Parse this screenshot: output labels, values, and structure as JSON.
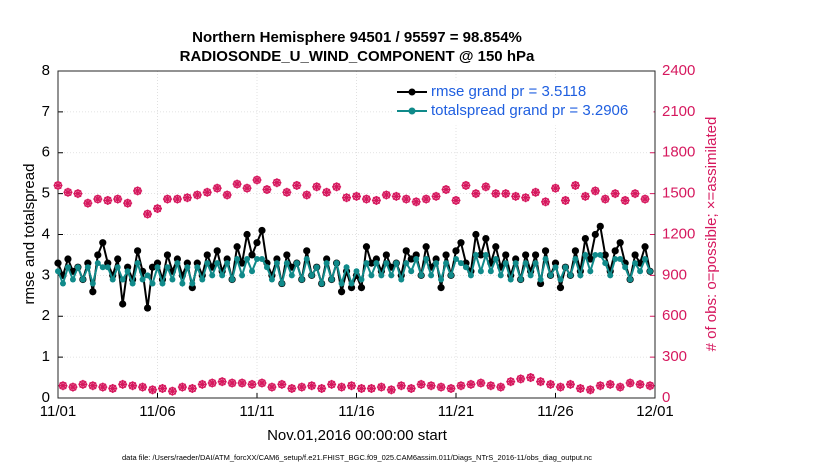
{
  "chart_data": {
    "type": "line",
    "title": "Northern Hemisphere 94501 / 95597 = 98.854%",
    "subtitle": "RADIOSONDE_U_WIND_COMPONENT @ 150 hPa",
    "xlabel": "Nov.01,2016 00:00:00 start",
    "ylabel": "rmse and totalspread",
    "y2label": "# of obs: o=possible; ×=assimilated",
    "footnote": "data file: /Users/raeder/DAI/ATM_forcXX/CAM6_setup/f.e21.FHIST_BGC.f09_025.CAM6assim.011/Diags_NTrS_2016-11/obs_diag_output.nc",
    "xlim": [
      0,
      30
    ],
    "xticks": [
      {
        "value": 0,
        "label": "11/01"
      },
      {
        "value": 5,
        "label": "11/06"
      },
      {
        "value": 10,
        "label": "11/11"
      },
      {
        "value": 15,
        "label": "11/16"
      },
      {
        "value": 20,
        "label": "11/21"
      },
      {
        "value": 25,
        "label": "11/26"
      },
      {
        "value": 30,
        "label": "12/01"
      }
    ],
    "ylim": [
      0,
      8
    ],
    "yticks": [
      0,
      1,
      2,
      3,
      4,
      5,
      6,
      7,
      8
    ],
    "y2lim": [
      0,
      2400
    ],
    "y2ticks": [
      0,
      300,
      600,
      900,
      1200,
      1500,
      1800,
      2100,
      2400
    ],
    "grid": true,
    "legend": "upper right",
    "x": [
      0,
      0.25,
      0.5,
      0.75,
      1,
      1.25,
      1.5,
      1.75,
      2,
      2.25,
      2.5,
      2.75,
      3,
      3.25,
      3.5,
      3.75,
      4,
      4.25,
      4.5,
      4.75,
      5,
      5.25,
      5.5,
      5.75,
      6,
      6.25,
      6.5,
      6.75,
      7,
      7.25,
      7.5,
      7.75,
      8,
      8.25,
      8.5,
      8.75,
      9,
      9.25,
      9.5,
      9.75,
      10,
      10.25,
      10.5,
      10.75,
      11,
      11.25,
      11.5,
      11.75,
      12,
      12.25,
      12.5,
      12.75,
      13,
      13.25,
      13.5,
      13.75,
      14,
      14.25,
      14.5,
      14.75,
      15,
      15.25,
      15.5,
      15.75,
      16,
      16.25,
      16.5,
      16.75,
      17,
      17.25,
      17.5,
      17.75,
      18,
      18.25,
      18.5,
      18.75,
      19,
      19.25,
      19.5,
      19.75,
      20,
      20.25,
      20.5,
      20.75,
      21,
      21.25,
      21.5,
      21.75,
      22,
      22.25,
      22.5,
      22.75,
      23,
      23.25,
      23.5,
      23.75,
      24,
      24.25,
      24.5,
      24.75,
      25,
      25.25,
      25.5,
      25.75,
      26,
      26.25,
      26.5,
      26.75,
      27,
      27.25,
      27.5,
      27.75,
      28,
      28.25,
      28.5,
      28.75,
      29,
      29.25,
      29.5,
      29.75
    ],
    "series": [
      {
        "name": "rmse grand pr = 3.5118",
        "color": "#000000",
        "marker": "filled",
        "values": [
          3.3,
          3.0,
          3.4,
          3.1,
          3.2,
          2.9,
          3.3,
          2.6,
          3.5,
          3.8,
          3.3,
          3.0,
          3.4,
          2.3,
          3.2,
          2.9,
          3.6,
          3.1,
          2.2,
          3.2,
          3.3,
          2.9,
          3.5,
          3.1,
          3.4,
          3.0,
          3.3,
          2.7,
          3.3,
          3.0,
          3.5,
          3.2,
          3.6,
          3.1,
          3.4,
          2.9,
          3.7,
          3.3,
          4.0,
          3.5,
          3.8,
          4.1,
          3.3,
          3.0,
          3.4,
          2.8,
          3.5,
          3.2,
          3.3,
          2.9,
          3.6,
          3.0,
          3.2,
          2.8,
          3.4,
          2.9,
          3.3,
          2.6,
          3.1,
          2.7,
          3.0,
          2.7,
          3.7,
          3.3,
          3.4,
          3.1,
          3.5,
          3.2,
          3.3,
          3.0,
          3.6,
          3.4,
          3.5,
          3.0,
          3.7,
          3.2,
          3.4,
          2.7,
          3.5,
          3.0,
          3.6,
          3.8,
          3.3,
          3.1,
          4.0,
          3.5,
          3.9,
          3.3,
          3.7,
          3.2,
          3.5,
          3.0,
          3.4,
          2.9,
          3.5,
          3.1,
          3.5,
          2.8,
          3.6,
          3.0,
          3.3,
          2.7,
          3.2,
          3.0,
          3.6,
          3.1,
          3.9,
          3.4,
          4.0,
          4.2,
          3.5,
          3.1,
          3.6,
          3.8,
          3.3,
          2.9,
          3.5,
          3.3,
          3.7,
          3.1
        ]
      },
      {
        "name": "totalspread grand pr = 3.2906",
        "color": "#108a8a",
        "marker": "filled",
        "values": [
          3.1,
          2.8,
          3.2,
          2.9,
          3.2,
          2.9,
          3.2,
          2.8,
          3.3,
          3.2,
          3.2,
          2.9,
          3.2,
          2.9,
          3.1,
          2.8,
          3.3,
          2.9,
          3.0,
          2.8,
          3.2,
          2.8,
          3.2,
          2.9,
          3.3,
          2.8,
          3.2,
          2.8,
          3.2,
          2.9,
          3.3,
          3.0,
          3.3,
          3.0,
          3.3,
          2.9,
          3.4,
          3.0,
          3.4,
          3.1,
          3.4,
          3.4,
          3.2,
          2.9,
          3.3,
          2.8,
          3.3,
          3.0,
          3.3,
          2.9,
          3.4,
          3.0,
          3.2,
          2.8,
          3.3,
          2.9,
          3.3,
          2.8,
          3.2,
          2.8,
          3.1,
          2.9,
          3.3,
          3.0,
          3.3,
          3.0,
          3.3,
          3.0,
          3.3,
          2.9,
          3.3,
          3.1,
          3.4,
          3.0,
          3.4,
          3.0,
          3.3,
          2.9,
          3.3,
          3.0,
          3.4,
          3.3,
          3.2,
          3.0,
          3.5,
          3.1,
          3.5,
          3.1,
          3.4,
          3.0,
          3.3,
          2.9,
          3.3,
          2.9,
          3.3,
          3.0,
          3.3,
          2.9,
          3.4,
          3.0,
          3.2,
          2.9,
          3.2,
          3.0,
          3.4,
          3.0,
          3.5,
          3.1,
          3.5,
          3.5,
          3.3,
          3.0,
          3.4,
          3.4,
          3.2,
          2.9,
          3.3,
          3.1,
          3.4,
          3.1
        ]
      },
      {
        "color": "#d6185e",
        "marker": "o",
        "axis": "y2",
        "values": [
          1560,
          90,
          1510,
          80,
          1500,
          100,
          1430,
          90,
          1460,
          80,
          1450,
          70,
          1460,
          100,
          1430,
          90,
          1520,
          80,
          1350,
          60,
          1390,
          70,
          1460,
          50,
          1460,
          80,
          1470,
          70,
          1490,
          100,
          1510,
          110,
          1540,
          120,
          1490,
          110,
          1570,
          110,
          1540,
          100,
          1600,
          110,
          1530,
          80,
          1580,
          100,
          1510,
          70,
          1560,
          80,
          1490,
          90,
          1550,
          70,
          1510,
          100,
          1550,
          80,
          1470,
          90,
          1480,
          70,
          1460,
          70,
          1450,
          80,
          1490,
          60,
          1480,
          90,
          1460,
          70,
          1440,
          100,
          1460,
          90,
          1480,
          80,
          1530,
          70,
          1450,
          90,
          1560,
          100,
          1500,
          110,
          1550,
          90,
          1500,
          80,
          1500,
          120,
          1480,
          140,
          1470,
          150,
          1510,
          120,
          1440,
          100,
          1540,
          80,
          1450,
          100,
          1560,
          70,
          1480,
          60,
          1520,
          90,
          1460,
          100,
          1500,
          80,
          1450,
          110,
          1500,
          100,
          1460,
          90
        ]
      },
      {
        "color": "#d6185e",
        "marker": "*",
        "axis": "y2",
        "values": [
          1560,
          90,
          1510,
          80,
          1500,
          100,
          1430,
          90,
          1460,
          80,
          1450,
          70,
          1460,
          100,
          1430,
          90,
          1520,
          80,
          1350,
          60,
          1390,
          70,
          1460,
          50,
          1460,
          80,
          1470,
          70,
          1490,
          100,
          1510,
          110,
          1540,
          120,
          1490,
          110,
          1570,
          110,
          1540,
          100,
          1600,
          110,
          1530,
          80,
          1580,
          100,
          1510,
          70,
          1560,
          80,
          1490,
          90,
          1550,
          70,
          1510,
          100,
          1550,
          80,
          1470,
          90,
          1480,
          70,
          1460,
          70,
          1450,
          80,
          1490,
          60,
          1480,
          90,
          1460,
          70,
          1440,
          100,
          1460,
          90,
          1480,
          80,
          1530,
          70,
          1450,
          90,
          1560,
          100,
          1500,
          110,
          1550,
          90,
          1500,
          80,
          1500,
          120,
          1480,
          140,
          1470,
          150,
          1510,
          120,
          1440,
          100,
          1540,
          80,
          1450,
          100,
          1560,
          70,
          1480,
          60,
          1520,
          90,
          1460,
          100,
          1500,
          80,
          1450,
          110,
          1500,
          100,
          1460,
          90
        ]
      }
    ]
  }
}
